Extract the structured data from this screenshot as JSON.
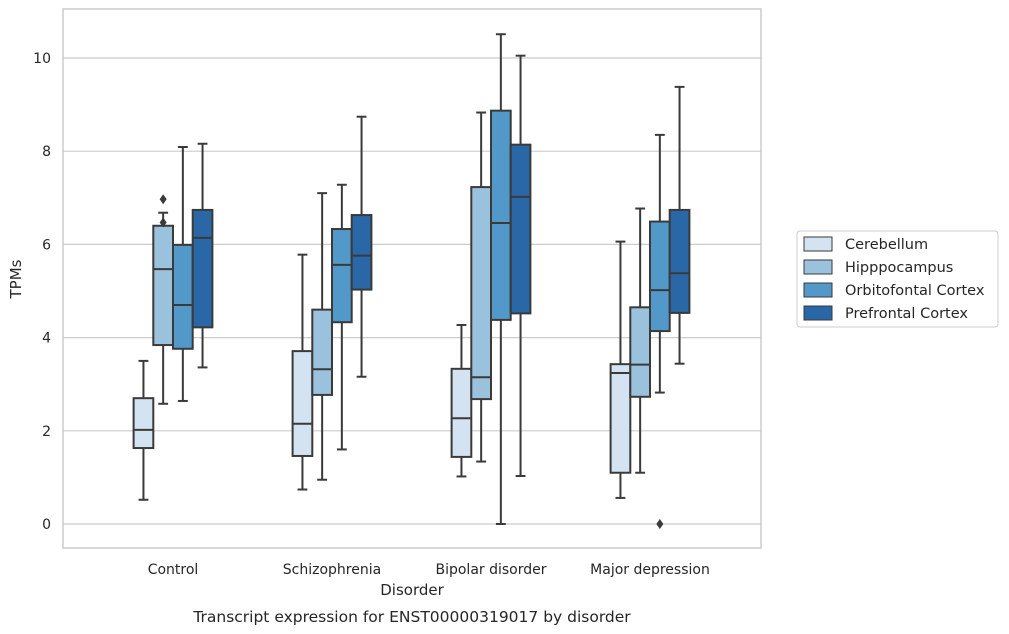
{
  "chart_data": {
    "type": "boxplot",
    "title": "",
    "caption": "Transcript expression for ENST00000319017 by disorder",
    "xlabel": "Disorder",
    "ylabel": "TPMs",
    "ylim": [
      -0.5,
      11.1
    ],
    "yticks": [
      0,
      2,
      4,
      6,
      8,
      10
    ],
    "grid": true,
    "legend_position": "right",
    "categories": [
      "Control",
      "Schizophrenia",
      "Bipolar disorder",
      "Major depression"
    ],
    "series": [
      {
        "name": "Cerebellum",
        "color": "#d3e3f1",
        "boxes": [
          {
            "whislo": 0.52,
            "q1": 1.63,
            "med": 2.02,
            "q3": 2.7,
            "whishi": 3.5,
            "fliers": []
          },
          {
            "whislo": 0.74,
            "q1": 1.46,
            "med": 2.15,
            "q3": 3.71,
            "whishi": 5.78,
            "fliers": []
          },
          {
            "whislo": 1.02,
            "q1": 1.44,
            "med": 2.27,
            "q3": 3.33,
            "whishi": 4.27,
            "fliers": []
          },
          {
            "whislo": 0.56,
            "q1": 1.1,
            "med": 3.24,
            "q3": 3.43,
            "whishi": 6.06,
            "fliers": []
          }
        ]
      },
      {
        "name": "Hipppocampus",
        "color": "#9bc2dc",
        "boxes": [
          {
            "whislo": 2.58,
            "q1": 3.84,
            "med": 5.47,
            "q3": 6.4,
            "whishi": 6.68,
            "fliers": [
              6.97,
              6.47
            ]
          },
          {
            "whislo": 0.95,
            "q1": 2.77,
            "med": 3.32,
            "q3": 4.6,
            "whishi": 7.1,
            "fliers": []
          },
          {
            "whislo": 1.34,
            "q1": 2.68,
            "med": 3.15,
            "q3": 7.23,
            "whishi": 8.83,
            "fliers": []
          },
          {
            "whislo": 1.1,
            "q1": 2.73,
            "med": 3.42,
            "q3": 4.65,
            "whishi": 6.77,
            "fliers": []
          }
        ]
      },
      {
        "name": "Orbitofontal Cortex",
        "color": "#5298c9",
        "boxes": [
          {
            "whislo": 2.64,
            "q1": 3.76,
            "med": 4.7,
            "q3": 5.99,
            "whishi": 8.09,
            "fliers": []
          },
          {
            "whislo": 1.6,
            "q1": 4.33,
            "med": 5.56,
            "q3": 6.33,
            "whishi": 7.28,
            "fliers": []
          },
          {
            "whislo": 0.0,
            "q1": 4.38,
            "med": 6.46,
            "q3": 8.87,
            "whishi": 10.51,
            "fliers": []
          },
          {
            "whislo": 2.82,
            "q1": 4.14,
            "med": 5.02,
            "q3": 6.49,
            "whishi": 8.35,
            "fliers": [
              0.0
            ]
          }
        ]
      },
      {
        "name": "Prefrontal Cortex",
        "color": "#2a67a6",
        "boxes": [
          {
            "whislo": 3.36,
            "q1": 4.22,
            "med": 6.14,
            "q3": 6.74,
            "whishi": 8.16,
            "fliers": []
          },
          {
            "whislo": 3.16,
            "q1": 5.03,
            "med": 5.76,
            "q3": 6.63,
            "whishi": 8.74,
            "fliers": []
          },
          {
            "whislo": 1.03,
            "q1": 4.52,
            "med": 7.02,
            "q3": 8.14,
            "whishi": 10.05,
            "fliers": []
          },
          {
            "whislo": 3.44,
            "q1": 4.53,
            "med": 5.38,
            "q3": 6.74,
            "whishi": 9.38,
            "fliers": []
          }
        ]
      }
    ]
  }
}
